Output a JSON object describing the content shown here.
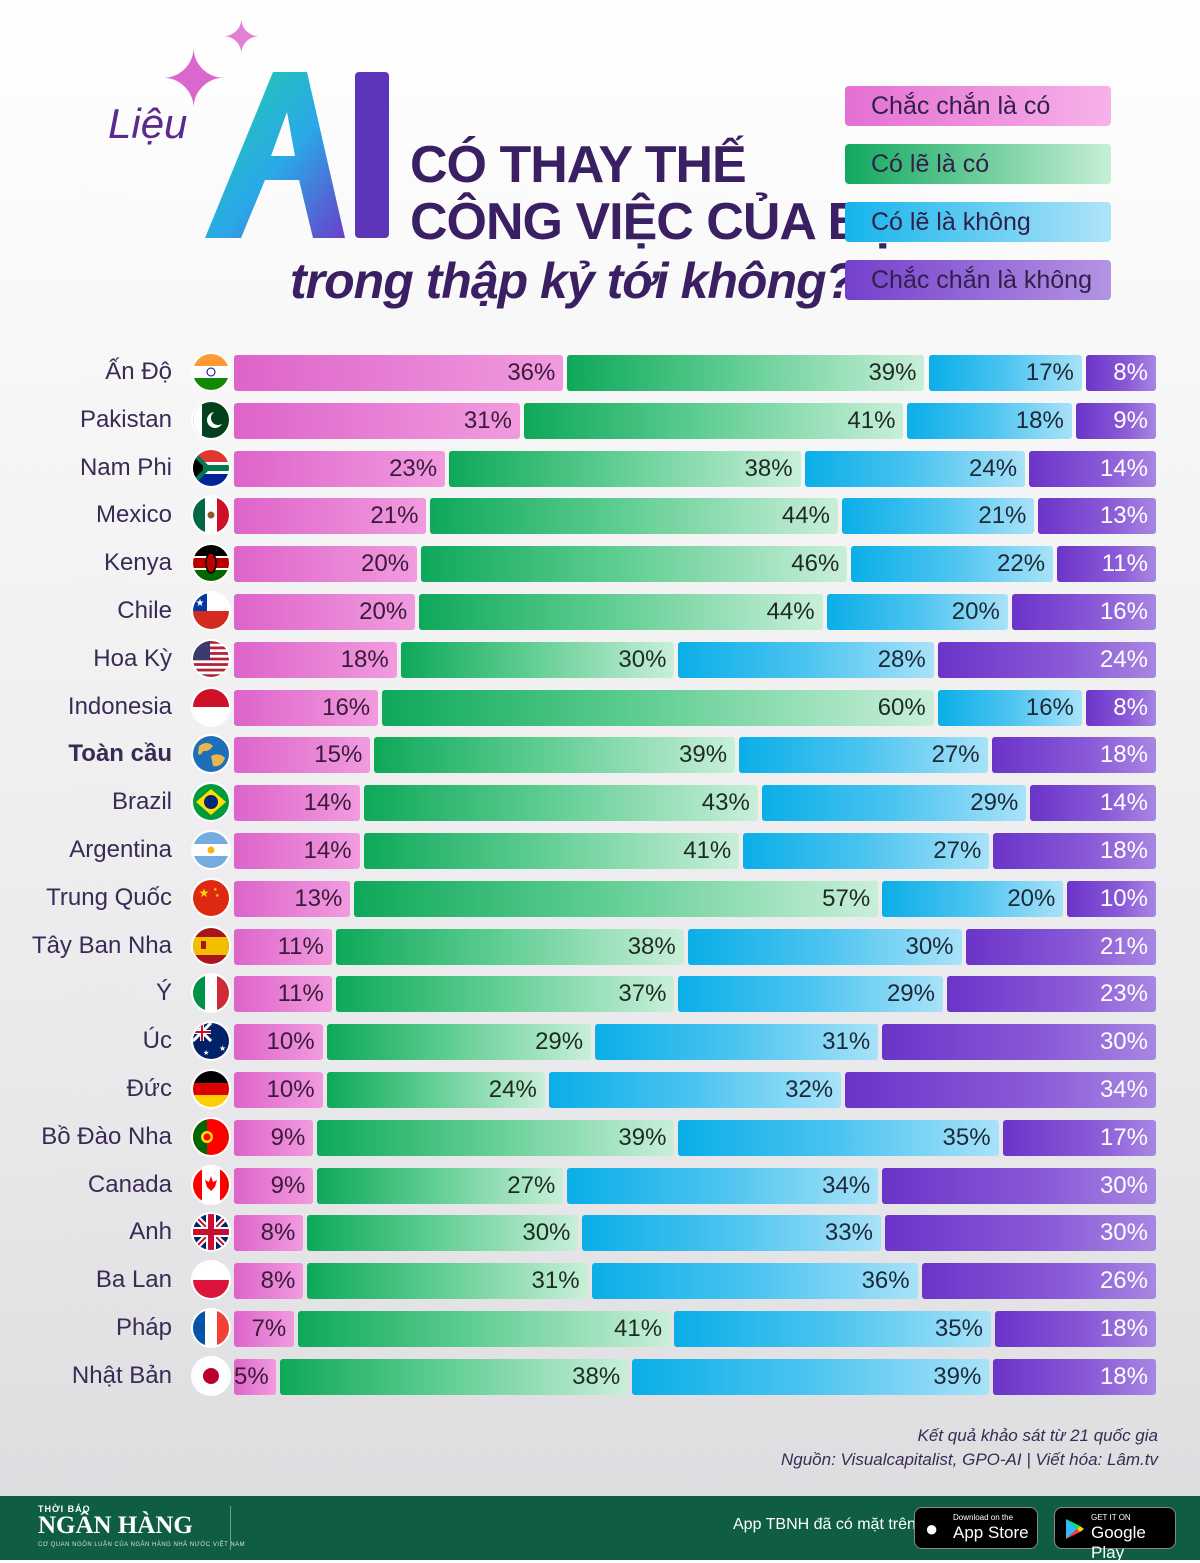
{
  "header": {
    "word_lieu": "Liệu",
    "ai_text": "AI",
    "line1": "CÓ THAY THẾ",
    "line2": "CÔNG VIỆC CỦA BẠN",
    "line3": "trong thập kỷ tới không?"
  },
  "chart_data": {
    "type": "bar",
    "orientation": "horizontal-stacked-100",
    "title": "Liệu AI có thay thế công việc của bạn trong thập kỷ tới không?",
    "series_names": [
      "Chắc chắn là có",
      "Có lẽ là có",
      "Có lẽ là không",
      "Chắc chắn là không"
    ],
    "colors": [
      "#e26fd0",
      "#1bb06a",
      "#20b8ec",
      "#7a45d0"
    ],
    "unit": "%",
    "rows": [
      {
        "country": "Ấn Độ",
        "flag": "india",
        "values": [
          36,
          39,
          17,
          8
        ]
      },
      {
        "country": "Pakistan",
        "flag": "pakistan",
        "values": [
          31,
          41,
          18,
          9
        ]
      },
      {
        "country": "Nam Phi",
        "flag": "south-africa",
        "values": [
          23,
          38,
          24,
          14
        ]
      },
      {
        "country": "Mexico",
        "flag": "mexico",
        "values": [
          21,
          44,
          21,
          13
        ]
      },
      {
        "country": "Kenya",
        "flag": "kenya",
        "values": [
          20,
          46,
          22,
          11
        ]
      },
      {
        "country": "Chile",
        "flag": "chile",
        "values": [
          20,
          44,
          20,
          16
        ]
      },
      {
        "country": "Hoa Kỳ",
        "flag": "usa",
        "values": [
          18,
          30,
          28,
          24
        ]
      },
      {
        "country": "Indonesia",
        "flag": "indonesia",
        "values": [
          16,
          60,
          16,
          8
        ]
      },
      {
        "country": "Toàn cầu",
        "flag": "globe",
        "bold": true,
        "values": [
          15,
          39,
          27,
          18
        ]
      },
      {
        "country": "Brazil",
        "flag": "brazil",
        "values": [
          14,
          43,
          29,
          14
        ]
      },
      {
        "country": "Argentina",
        "flag": "argentina",
        "values": [
          14,
          41,
          27,
          18
        ]
      },
      {
        "country": "Trung Quốc",
        "flag": "china",
        "values": [
          13,
          57,
          20,
          10
        ]
      },
      {
        "country": "Tây Ban Nha",
        "flag": "spain",
        "values": [
          11,
          38,
          30,
          21
        ]
      },
      {
        "country": "Ý",
        "flag": "italy",
        "values": [
          11,
          37,
          29,
          23
        ]
      },
      {
        "country": "Úc",
        "flag": "australia",
        "values": [
          10,
          29,
          31,
          30
        ]
      },
      {
        "country": "Đức",
        "flag": "germany",
        "values": [
          10,
          24,
          32,
          34
        ]
      },
      {
        "country": "Bồ Đào Nha",
        "flag": "portugal",
        "values": [
          9,
          39,
          35,
          17
        ]
      },
      {
        "country": "Canada",
        "flag": "canada",
        "values": [
          9,
          27,
          34,
          30
        ]
      },
      {
        "country": "Anh",
        "flag": "uk",
        "values": [
          8,
          30,
          33,
          30
        ]
      },
      {
        "country": "Ba Lan",
        "flag": "poland",
        "values": [
          8,
          31,
          36,
          26
        ]
      },
      {
        "country": "Pháp",
        "flag": "france",
        "values": [
          7,
          41,
          35,
          18
        ]
      },
      {
        "country": "Nhật Bản",
        "flag": "japan",
        "values": [
          5,
          38,
          39,
          18
        ]
      }
    ]
  },
  "legend": {
    "items": [
      {
        "label": "Chắc chắn là có",
        "color": "#e26fd0"
      },
      {
        "label": "Có lẽ là có",
        "color": "#1bb06a"
      },
      {
        "label": "Có lẽ là không",
        "color": "#20b8ec"
      },
      {
        "label": "Chắc chắn là không",
        "color": "#7a45d0"
      }
    ]
  },
  "footnote": {
    "line1": "Kết quả khảo sát từ 21 quốc gia",
    "line2": "Nguồn: Visualcapitalist, GPO-AI | Viết hóa: Lâm.tv"
  },
  "footer": {
    "brand_small": "THỜI BÁO",
    "brand_name": "NGÂN HÀNG",
    "brand_tagline": "CƠ QUAN NGÔN LUẬN CỦA NGÂN HÀNG NHÀ NƯỚC VIỆT NAM",
    "app_text": "App TBNH đã có mặt trên",
    "appstore_small": "Download on the",
    "appstore_big": "App Store",
    "googleplay_small": "GET IT ON",
    "googleplay_big": "Google Play"
  }
}
